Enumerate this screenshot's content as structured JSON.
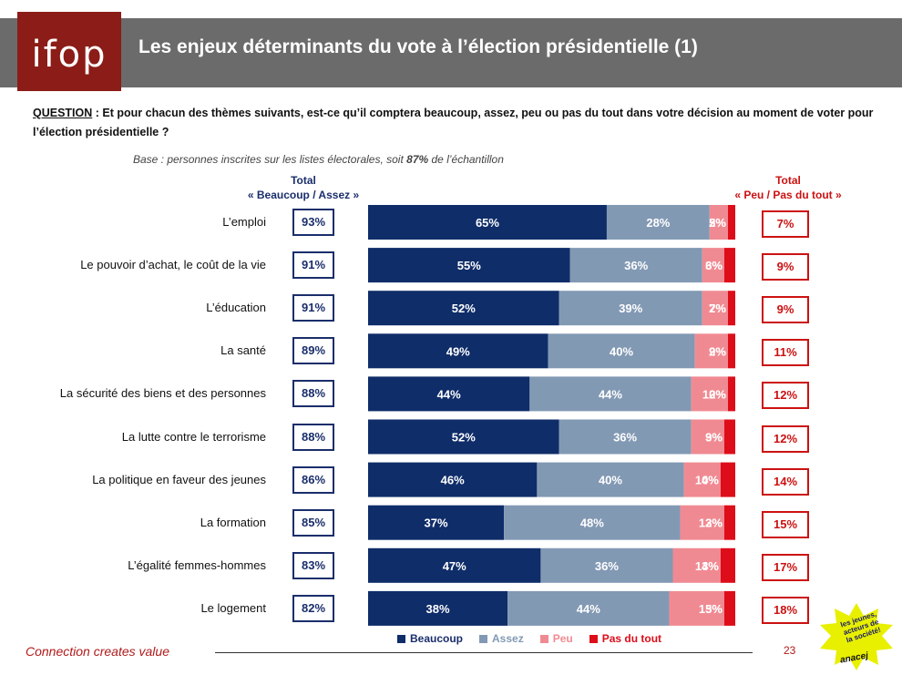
{
  "header": {
    "logo": "ifop",
    "title": "Les enjeux déterminants du vote à l’élection présidentielle (1)"
  },
  "question": {
    "label": "QUESTION",
    "text": " : Et pour chacun des thèmes suivants, est-ce qu’il comptera beaucoup, assez, peu ou pas du tout dans votre décision au moment de voter pour l’élection présidentielle ?"
  },
  "base_note": {
    "prefix": "Base : personnes inscrites sur les listes électorales, soit ",
    "pct": "87%",
    "suffix": " de l’échantillon"
  },
  "col_headers": {
    "left_line1": "Total",
    "left_line2": "« Beaucoup / Assez »",
    "right_line1": "Total",
    "right_line2": "« Peu / Pas du tout »"
  },
  "colors": {
    "beaucoup": "#0f2d69",
    "assez": "#8299b4",
    "peu": "#f08a92",
    "pas_du_tout": "#dd0d1a"
  },
  "chart_data": {
    "type": "bar",
    "orientation": "horizontal",
    "stacked": true,
    "categories": [
      "L’emploi",
      "Le pouvoir d’achat, le coût de la vie",
      "L’éducation",
      "La santé",
      "La sécurité des biens et des personnes",
      "La lutte contre le terrorisme",
      "La politique en faveur des jeunes",
      "La formation",
      "L’égalité femmes-hommes",
      "Le logement"
    ],
    "series": [
      {
        "name": "Beaucoup",
        "values": [
          65,
          55,
          52,
          49,
          44,
          52,
          46,
          37,
          47,
          38
        ]
      },
      {
        "name": "Assez",
        "values": [
          28,
          36,
          39,
          40,
          44,
          36,
          40,
          48,
          36,
          44
        ]
      },
      {
        "name": "Peu",
        "values": [
          5,
          6,
          7,
          9,
          10,
          9,
          10,
          12,
          13,
          15
        ]
      },
      {
        "name": "Pas du tout",
        "values": [
          2,
          3,
          2,
          2,
          2,
          3,
          4,
          3,
          4,
          3
        ]
      }
    ],
    "total_beaucoup_assez": [
      "93%",
      "91%",
      "91%",
      "89%",
      "88%",
      "88%",
      "86%",
      "85%",
      "83%",
      "82%"
    ],
    "total_peu_pas_du_tout": [
      "7%",
      "9%",
      "9%",
      "11%",
      "12%",
      "12%",
      "14%",
      "15%",
      "17%",
      "18%"
    ],
    "unit": "%",
    "xlim": [
      0,
      100
    ],
    "legend_position": "bottom"
  },
  "legend": [
    "Beaucoup",
    "Assez",
    "Peu",
    "Pas du tout"
  ],
  "footer": {
    "tagline": "Connection creates value",
    "page": "23"
  },
  "sticker": {
    "line1": "les jeunes,",
    "line2": "acteurs de",
    "line3": "la société!",
    "sign": "anacej"
  }
}
